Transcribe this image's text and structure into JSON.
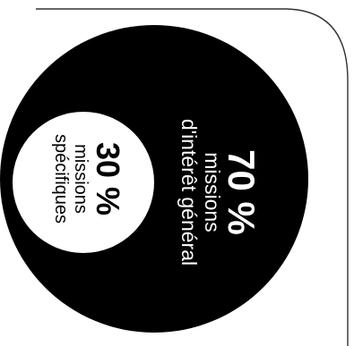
{
  "chart_data": {
    "type": "pie",
    "style": "nested-circles",
    "orientation": "rotated-90-clockwise",
    "series": [
      {
        "value": 70,
        "value_label": "70 %",
        "lines": [
          "missions",
          "d'intérêt général"
        ],
        "color": "#000000",
        "text_color": "#ffffff"
      },
      {
        "value": 30,
        "value_label": "30 %",
        "lines": [
          "missions",
          "spécifiques"
        ],
        "color": "#ffffff",
        "text_color": "#000000"
      }
    ]
  },
  "colors": {
    "background": "#ffffff",
    "frame": "#333333"
  }
}
